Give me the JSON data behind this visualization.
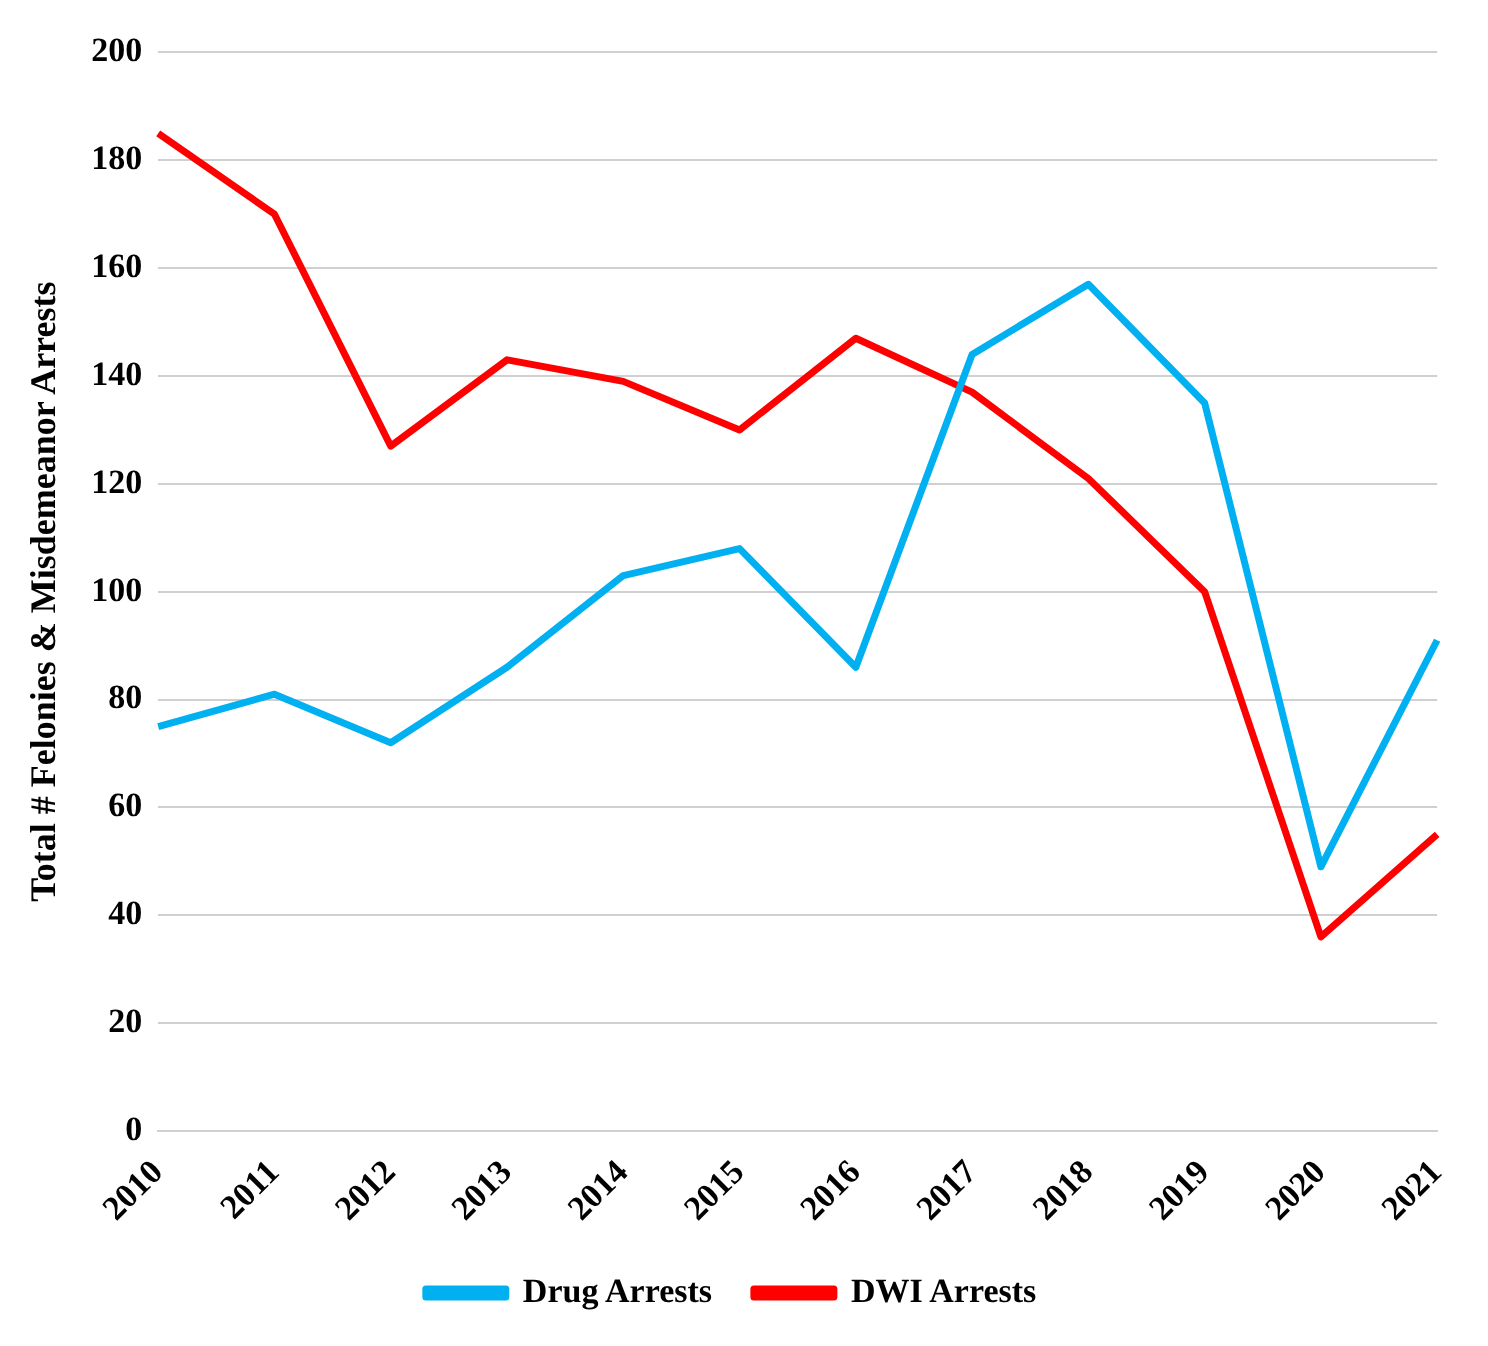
{
  "chart_data": {
    "type": "line",
    "ylabel": "Total # Felonies & Misdemeanor Arrests",
    "categories": [
      "2010",
      "2011",
      "2012",
      "2013",
      "2014",
      "2015",
      "2016",
      "2017",
      "2018",
      "2019",
      "2020",
      "2021"
    ],
    "series": [
      {
        "name": "Drug Arrests",
        "color": "#00b0f0",
        "values": [
          75,
          81,
          72,
          86,
          103,
          108,
          86,
          144,
          157,
          135,
          49,
          91
        ]
      },
      {
        "name": "DWI Arrests",
        "color": "#ff0000",
        "values": [
          185,
          170,
          127,
          143,
          139,
          130,
          147,
          137,
          121,
          100,
          36,
          55
        ]
      }
    ],
    "ylim": [
      0,
      200
    ],
    "yticks": [
      0,
      20,
      40,
      60,
      80,
      100,
      120,
      140,
      160,
      180,
      200
    ],
    "grid": "y",
    "legend": "bottom",
    "marker": "none"
  }
}
